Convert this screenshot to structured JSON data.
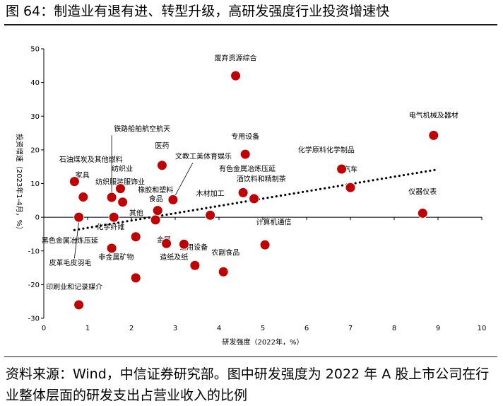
{
  "title": "图 64：制造业有退有进、转型升级，高研发强度行业投资增速快",
  "source": "资料来源：Wind，中信证券研究部。图中研发强度为 2022 年 A 股上市公司在行业整体层面的研发支出占营业收入的比例",
  "colors": {
    "point": "#c00000",
    "trend": "#000000",
    "axis": "#000000"
  },
  "chart_data": {
    "type": "scatter",
    "xlabel": "研发强度（2022年，%）",
    "ylabel": "投资增速（2023年1-4月，%）",
    "xlim": [
      0,
      10
    ],
    "ylim": [
      -30,
      50
    ],
    "xticks": [
      "0",
      "1",
      "2",
      "3",
      "4",
      "5",
      "6",
      "7",
      "8",
      "9",
      "10"
    ],
    "yticks": [
      "-30",
      "-20",
      "-10",
      "0",
      "10",
      "20",
      "30",
      "40",
      "50"
    ],
    "trendline": {
      "style": "dotted",
      "x": [
        0.7,
        9.0
      ],
      "y": [
        -3.8,
        14.2
      ]
    },
    "points": [
      {
        "x": 4.38,
        "y": 42.0
      },
      {
        "x": 8.9,
        "y": 24.3
      },
      {
        "x": 4.6,
        "y": 18.7
      },
      {
        "x": 6.8,
        "y": 14.3
      },
      {
        "x": 7.0,
        "y": 8.8
      },
      {
        "x": 8.65,
        "y": 1.2
      },
      {
        "x": 2.7,
        "y": 15.4
      },
      {
        "x": 2.95,
        "y": 5.2
      },
      {
        "x": 4.55,
        "y": 7.3
      },
      {
        "x": 4.8,
        "y": 5.5
      },
      {
        "x": 3.8,
        "y": 0.6
      },
      {
        "x": 5.05,
        "y": -8.2
      },
      {
        "x": 4.1,
        "y": -16.2
      },
      {
        "x": 3.45,
        "y": -14.3
      },
      {
        "x": 3.2,
        "y": -8.0
      },
      {
        "x": 2.8,
        "y": -7.8
      },
      {
        "x": 2.1,
        "y": -18.0
      },
      {
        "x": 2.1,
        "y": -5.8
      },
      {
        "x": 2.55,
        "y": -0.8
      },
      {
        "x": 2.6,
        "y": 2.0
      },
      {
        "x": 1.6,
        "y": 0.0
      },
      {
        "x": 1.55,
        "y": 5.9
      },
      {
        "x": 1.75,
        "y": 8.5
      },
      {
        "x": 1.8,
        "y": 4.5
      },
      {
        "x": 1.55,
        "y": -9.2
      },
      {
        "x": 0.7,
        "y": 10.6
      },
      {
        "x": 0.9,
        "y": 6.0
      },
      {
        "x": 0.8,
        "y": 0.0
      },
      {
        "x": 0.8,
        "y": -26.0
      }
    ],
    "annotations": [
      {
        "text": "废弃资源综合"
      },
      {
        "text": "电气机械及器材"
      },
      {
        "text": "专用设备"
      },
      {
        "text": "化学原料化学制品"
      },
      {
        "text": "汽车"
      },
      {
        "text": "仪器仪表"
      },
      {
        "text": "铁路船舶航空航天"
      },
      {
        "text": "医药"
      },
      {
        "text": "文教工美体育娱乐"
      },
      {
        "text": "有色金属冶炼压延"
      },
      {
        "text": "酒饮料和精制茶"
      },
      {
        "text": "石油煤炭及其他燃料"
      },
      {
        "text": "家具"
      },
      {
        "text": "纺织业"
      },
      {
        "text": "纺织服装服饰业"
      },
      {
        "text": "橡胶和塑料"
      },
      {
        "text": "食品"
      },
      {
        "text": "木材加工"
      },
      {
        "text": "其他"
      },
      {
        "text": "金属"
      },
      {
        "text": "化学纤维"
      },
      {
        "text": "计算机通信"
      },
      {
        "text": "黑色金属冶炼压延"
      },
      {
        "text": "通用设备"
      },
      {
        "text": "非金属矿物"
      },
      {
        "text": "造纸及纸"
      },
      {
        "text": "农副食品"
      },
      {
        "text": "皮革毛皮羽毛"
      },
      {
        "text": "印刷业和记录媒介"
      }
    ]
  }
}
